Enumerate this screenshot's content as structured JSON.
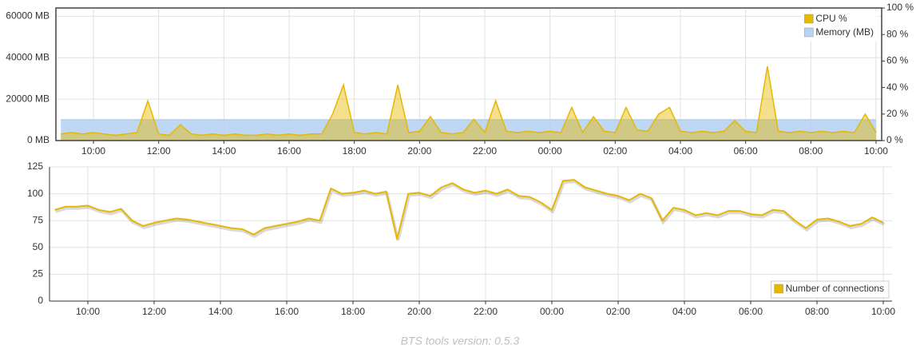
{
  "chart_data": [
    {
      "type": "area",
      "x": [
        "09:00",
        "09:20",
        "09:40",
        "10:00",
        "10:20",
        "10:40",
        "11:00",
        "11:20",
        "11:40",
        "12:00",
        "12:20",
        "12:40",
        "13:00",
        "13:20",
        "13:40",
        "14:00",
        "14:20",
        "14:40",
        "15:00",
        "15:20",
        "15:40",
        "16:00",
        "16:20",
        "16:40",
        "17:00",
        "17:20",
        "17:40",
        "18:00",
        "18:20",
        "18:40",
        "19:00",
        "19:20",
        "19:40",
        "20:00",
        "20:20",
        "20:40",
        "21:00",
        "21:20",
        "21:40",
        "22:00",
        "22:20",
        "22:40",
        "23:00",
        "23:20",
        "23:40",
        "00:00",
        "00:20",
        "00:40",
        "01:00",
        "01:20",
        "01:40",
        "02:00",
        "02:20",
        "02:40",
        "03:00",
        "03:20",
        "03:40",
        "04:00",
        "04:20",
        "04:40",
        "05:00",
        "05:20",
        "05:40",
        "06:00",
        "06:20",
        "06:40",
        "07:00",
        "07:20",
        "07:40",
        "08:00",
        "08:20",
        "08:40",
        "09:00",
        "09:20",
        "09:40",
        "10:00"
      ],
      "xticks": [
        "10:00",
        "12:00",
        "14:00",
        "16:00",
        "18:00",
        "20:00",
        "22:00",
        "00:00",
        "02:00",
        "04:00",
        "06:00",
        "08:00",
        "10:00"
      ],
      "ylim": [
        0,
        64000
      ],
      "yticks": [
        {
          "value": 0,
          "label": "0 MB"
        },
        {
          "value": 20000,
          "label": "20000 MB"
        },
        {
          "value": 40000,
          "label": "40000 MB"
        },
        {
          "value": 60000,
          "label": "60000 MB"
        }
      ],
      "y2lim": [
        0,
        100
      ],
      "y2ticks": [
        {
          "value": 0,
          "label": "0 %"
        },
        {
          "value": 20,
          "label": "20 %"
        },
        {
          "value": 40,
          "label": "40 %"
        },
        {
          "value": 60,
          "label": "60 %"
        },
        {
          "value": 80,
          "label": "80 %"
        },
        {
          "value": 100,
          "label": "100 %"
        }
      ],
      "grid": true,
      "legend": "top-right",
      "series": [
        {
          "name": "CPU %",
          "color": "#e6b800",
          "axis": "y2",
          "values": [
            5,
            6,
            5,
            6,
            5,
            4,
            5,
            6,
            30,
            5,
            4,
            12,
            5,
            4,
            5,
            4,
            5,
            4,
            4,
            5,
            4,
            5,
            4,
            5,
            5,
            20,
            42,
            6,
            5,
            6,
            5,
            42,
            6,
            7,
            18,
            6,
            5,
            6,
            16,
            6,
            30,
            7,
            6,
            7,
            6,
            7,
            6,
            25,
            6,
            18,
            7,
            6,
            25,
            8,
            7,
            20,
            25,
            7,
            6,
            7,
            6,
            7,
            15,
            7,
            6,
            56,
            7,
            6,
            7,
            6,
            7,
            6,
            7,
            6,
            20,
            6
          ]
        },
        {
          "name": "Memory (MB)",
          "color": "#b7d3f2",
          "values": [
            10000,
            10000,
            10000,
            10000,
            10000,
            10000,
            10000,
            10000,
            10000,
            10000,
            10000,
            10000,
            10000,
            10000,
            10000,
            10000,
            10000,
            10000,
            10000,
            10000,
            10000,
            10000,
            10000,
            10000,
            10000,
            10000,
            10000,
            10000,
            10000,
            10000,
            10000,
            10000,
            10000,
            10000,
            10000,
            10000,
            10000,
            10000,
            10000,
            10000,
            10000,
            10000,
            10000,
            10000,
            10000,
            10000,
            10000,
            10000,
            10000,
            10000,
            10000,
            10000,
            10000,
            10000,
            10000,
            10000,
            10000,
            10000,
            10000,
            10000,
            10000,
            10000,
            10000,
            10000,
            10000,
            10000,
            10000,
            10000,
            10000,
            10000,
            10000,
            10000,
            10000,
            10000,
            10000,
            10000
          ]
        }
      ]
    },
    {
      "type": "line",
      "x": [
        "09:00",
        "09:20",
        "09:40",
        "10:00",
        "10:20",
        "10:40",
        "11:00",
        "11:20",
        "11:40",
        "12:00",
        "12:20",
        "12:40",
        "13:00",
        "13:20",
        "13:40",
        "14:00",
        "14:20",
        "14:40",
        "15:00",
        "15:20",
        "15:40",
        "16:00",
        "16:20",
        "16:40",
        "17:00",
        "17:20",
        "17:40",
        "18:00",
        "18:20",
        "18:40",
        "19:00",
        "19:20",
        "19:40",
        "20:00",
        "20:20",
        "20:40",
        "21:00",
        "21:20",
        "21:40",
        "22:00",
        "22:20",
        "22:40",
        "23:00",
        "23:20",
        "23:40",
        "00:00",
        "00:20",
        "00:40",
        "01:00",
        "01:20",
        "01:40",
        "02:00",
        "02:20",
        "02:40",
        "03:00",
        "03:20",
        "03:40",
        "04:00",
        "04:20",
        "04:40",
        "05:00",
        "05:20",
        "05:40",
        "06:00",
        "06:20",
        "06:40",
        "07:00",
        "07:20",
        "07:40",
        "08:00",
        "08:20",
        "08:40",
        "09:00",
        "09:20",
        "09:40",
        "10:00"
      ],
      "xticks": [
        "10:00",
        "12:00",
        "14:00",
        "16:00",
        "18:00",
        "20:00",
        "22:00",
        "00:00",
        "02:00",
        "04:00",
        "06:00",
        "08:00",
        "10:00"
      ],
      "ylim": [
        0,
        125
      ],
      "yticks": [
        0,
        25,
        50,
        75,
        100,
        125
      ],
      "grid": true,
      "legend": "bottom-right",
      "series": [
        {
          "name": "Number of connections",
          "color": "#e6b800",
          "values": [
            85,
            88,
            88,
            89,
            85,
            83,
            86,
            75,
            70,
            73,
            75,
            77,
            76,
            74,
            72,
            70,
            68,
            67,
            62,
            68,
            70,
            72,
            74,
            77,
            75,
            105,
            100,
            101,
            103,
            100,
            102,
            58,
            100,
            101,
            98,
            106,
            110,
            104,
            101,
            103,
            100,
            104,
            98,
            97,
            92,
            85,
            112,
            113,
            106,
            103,
            100,
            98,
            94,
            100,
            96,
            75,
            87,
            85,
            80,
            82,
            80,
            84,
            84,
            81,
            80,
            85,
            84,
            75,
            68,
            76,
            77,
            74,
            70,
            72,
            78,
            73
          ]
        }
      ]
    }
  ],
  "footer": "BTS tools version: 0.5.3"
}
